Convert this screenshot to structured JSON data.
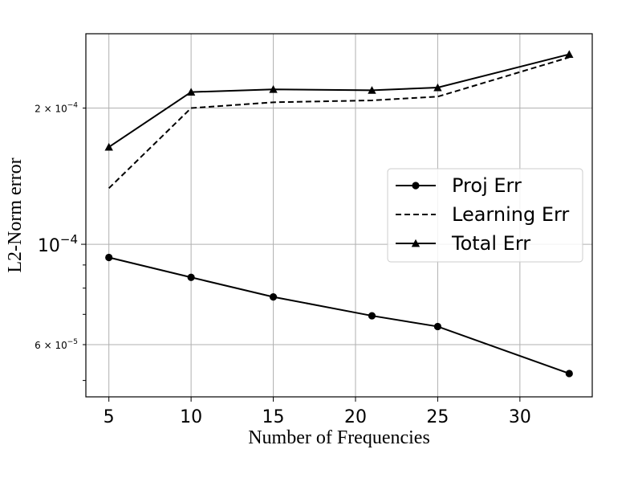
{
  "chart_data": {
    "type": "line",
    "xlabel": "Number of Frequencies",
    "ylabel": "L2-Norm error",
    "yscale": "log",
    "xlim": [
      3.6,
      34.4
    ],
    "ylim": [
      4.6e-05,
      0.000292
    ],
    "grid": true,
    "legend_position": "center-right",
    "x_ticks": [
      5,
      10,
      15,
      20,
      25,
      30
    ],
    "x_tick_labels": [
      "5",
      "10",
      "15",
      "20",
      "25",
      "30"
    ],
    "y_ticks": [
      {
        "value": 0.0002,
        "base": "2 × 10",
        "exp": "−4",
        "style": "minor"
      },
      {
        "value": 0.0001,
        "base": "10",
        "exp": "−4",
        "style": "major"
      },
      {
        "value": 6e-05,
        "base": "6 × 10",
        "exp": "−5",
        "style": "minor"
      }
    ],
    "y_minor_ticks": [
      5e-05,
      7e-05,
      8e-05,
      9e-05,
      0.0003
    ],
    "series": [
      {
        "name": "Proj Err",
        "color": "#000000",
        "dash": "solid",
        "marker": "circle",
        "x": [
          5,
          10,
          15,
          21,
          25,
          33
        ],
        "y": [
          9.35e-05,
          8.45e-05,
          7.65e-05,
          6.95e-05,
          6.58e-05,
          5.18e-05
        ]
      },
      {
        "name": "Learning Err",
        "color": "#000000",
        "dash": "dashed",
        "marker": "none",
        "x": [
          5,
          10,
          15,
          21,
          25,
          33
        ],
        "y": [
          0.000133,
          0.0002,
          0.000206,
          0.000208,
          0.000212,
          0.000259
        ]
      },
      {
        "name": "Total Err",
        "color": "#000000",
        "dash": "solid",
        "marker": "triangle",
        "x": [
          5,
          10,
          15,
          21,
          25,
          33
        ],
        "y": [
          0.000164,
          0.000217,
          0.00022,
          0.000219,
          0.000222,
          0.000263
        ]
      }
    ]
  }
}
